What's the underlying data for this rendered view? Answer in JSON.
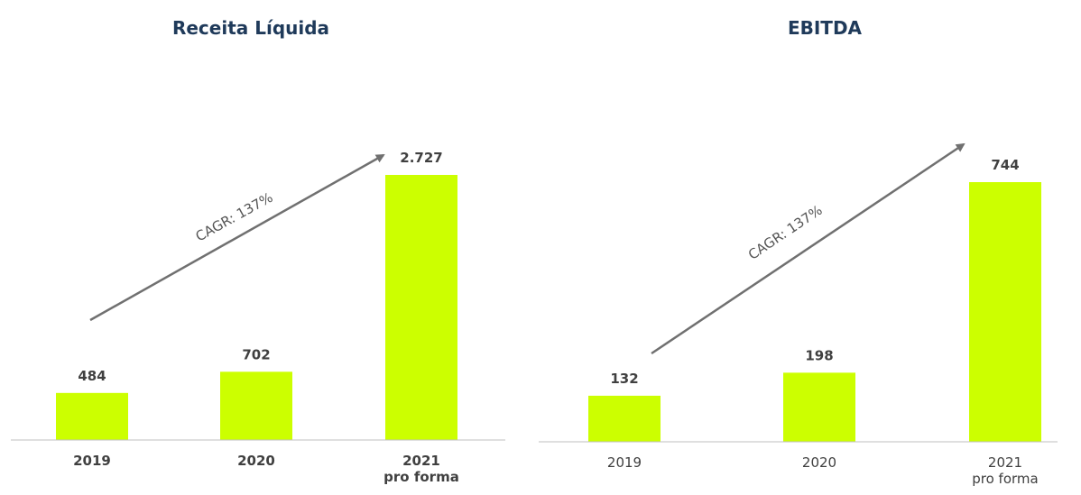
{
  "chart_data": [
    {
      "type": "bar",
      "title": "Receita Líquida",
      "annotation": "CAGR: 137%",
      "categories": [
        "2019",
        "2020",
        "2021\npro forma"
      ],
      "values": [
        484,
        702,
        2727
      ],
      "value_labels": [
        "484",
        "702",
        "2.727"
      ],
      "color": "#ccff00"
    },
    {
      "type": "bar",
      "title": "EBITDA",
      "annotation": "CAGR: 137%",
      "categories": [
        "2019",
        "2020",
        "2021\npro forma"
      ],
      "values": [
        132,
        198,
        744
      ],
      "value_labels": [
        "132",
        "198",
        "744"
      ],
      "color": "#ccff00"
    }
  ]
}
